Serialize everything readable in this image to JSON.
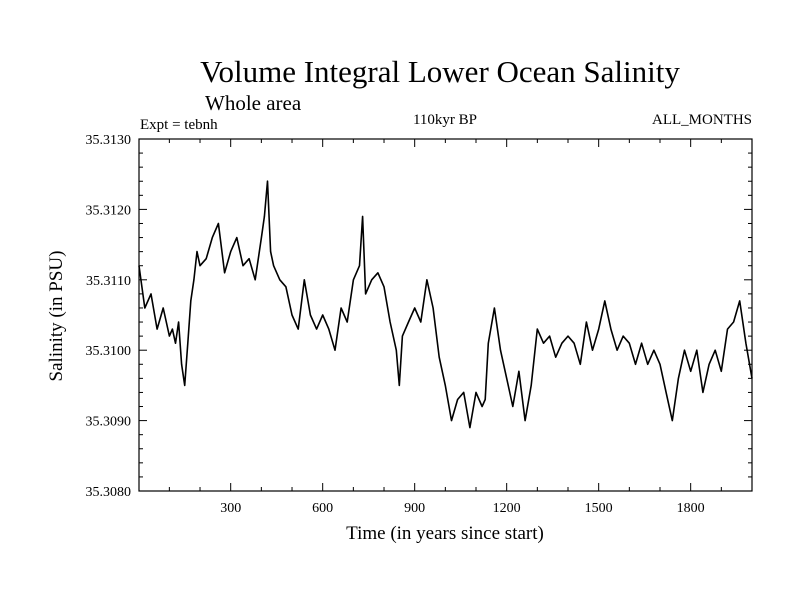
{
  "chart_data": {
    "type": "line",
    "title": "Volume Integral Lower Ocean Salinity",
    "subtitle": "Whole area",
    "annotations": {
      "left": "Expt = tebnh",
      "center": "110kyr BP",
      "right": "ALL_MONTHS"
    },
    "xlabel": "Time (in years since start)",
    "ylabel": "Salinity (in PSU)",
    "xlim": [
      1,
      2000
    ],
    "ylim": [
      35.308,
      35.313
    ],
    "xticks": [
      300,
      600,
      900,
      1200,
      1500,
      1800
    ],
    "xtick_labels": [
      "300",
      "600",
      "900",
      "1200",
      "1500",
      "1800"
    ],
    "yticks": [
      35.308,
      35.309,
      35.31,
      35.311,
      35.312,
      35.313
    ],
    "ytick_labels": [
      "35.3080",
      "35.3090",
      "35.3100",
      "35.3110",
      "35.3120",
      "35.3130"
    ],
    "series": [
      {
        "name": "salinity",
        "color": "#000000",
        "x": [
          1,
          20,
          40,
          60,
          80,
          100,
          110,
          120,
          130,
          140,
          150,
          160,
          170,
          180,
          190,
          200,
          220,
          240,
          260,
          280,
          300,
          320,
          340,
          360,
          380,
          400,
          410,
          420,
          430,
          440,
          460,
          480,
          500,
          520,
          540,
          560,
          580,
          600,
          620,
          640,
          660,
          680,
          700,
          720,
          730,
          740,
          760,
          780,
          800,
          820,
          840,
          850,
          860,
          880,
          900,
          920,
          940,
          960,
          980,
          1000,
          1020,
          1040,
          1060,
          1080,
          1100,
          1120,
          1130,
          1140,
          1160,
          1180,
          1200,
          1220,
          1240,
          1260,
          1280,
          1300,
          1320,
          1340,
          1360,
          1380,
          1400,
          1420,
          1440,
          1460,
          1480,
          1500,
          1520,
          1540,
          1560,
          1580,
          1600,
          1620,
          1640,
          1660,
          1680,
          1700,
          1720,
          1740,
          1760,
          1780,
          1800,
          1820,
          1840,
          1860,
          1880,
          1900,
          1920,
          1940,
          1960,
          1980,
          2000
        ],
        "values": [
          35.3112,
          35.3106,
          35.3108,
          35.3103,
          35.3106,
          35.3102,
          35.3103,
          35.3101,
          35.3104,
          35.3098,
          35.3095,
          35.3101,
          35.3107,
          35.311,
          35.3114,
          35.3112,
          35.3113,
          35.3116,
          35.3118,
          35.3111,
          35.3114,
          35.3116,
          35.3112,
          35.3113,
          35.311,
          35.3116,
          35.3119,
          35.3124,
          35.3114,
          35.3112,
          35.311,
          35.3109,
          35.3105,
          35.3103,
          35.311,
          35.3105,
          35.3103,
          35.3105,
          35.3103,
          35.31,
          35.3106,
          35.3104,
          35.311,
          35.3112,
          35.3119,
          35.3108,
          35.311,
          35.3111,
          35.3109,
          35.3104,
          35.31,
          35.3095,
          35.3102,
          35.3104,
          35.3106,
          35.3104,
          35.311,
          35.3106,
          35.3099,
          35.3095,
          35.309,
          35.3093,
          35.3094,
          35.3089,
          35.3094,
          35.3092,
          35.3093,
          35.3101,
          35.3106,
          35.31,
          35.3096,
          35.3092,
          35.3097,
          35.309,
          35.3095,
          35.3103,
          35.3101,
          35.3102,
          35.3099,
          35.3101,
          35.3102,
          35.3101,
          35.3098,
          35.3104,
          35.31,
          35.3103,
          35.3107,
          35.3103,
          35.31,
          35.3102,
          35.3101,
          35.3098,
          35.3101,
          35.3098,
          35.31,
          35.3098,
          35.3094,
          35.309,
          35.3096,
          35.31,
          35.3097,
          35.31,
          35.3094,
          35.3098,
          35.31,
          35.3097,
          35.3103,
          35.3104,
          35.3107,
          35.3101,
          35.3096
        ]
      }
    ]
  }
}
